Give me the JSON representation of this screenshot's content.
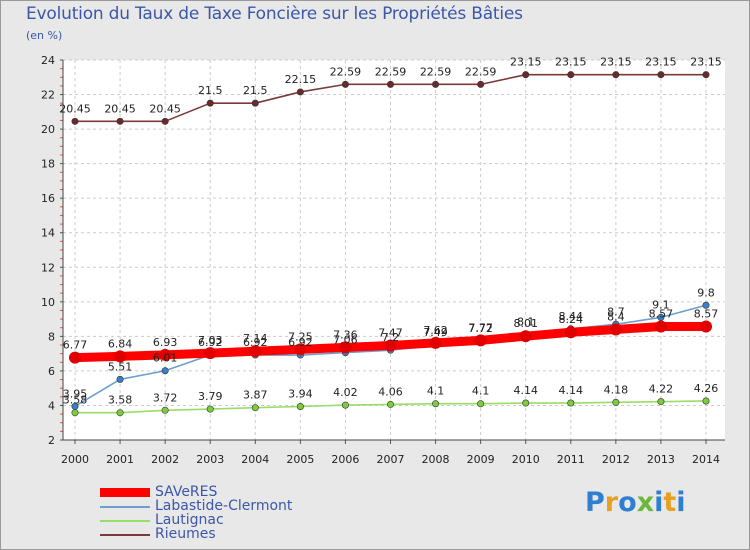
{
  "title": "Evolution du Taux de Taxe Foncière sur les Propriétés Bâties",
  "unit": "(en %)",
  "logo": {
    "letters": [
      "P",
      "r",
      "o",
      "x",
      "i",
      "t",
      "i"
    ],
    "colors": [
      "#2f7fd1",
      "#e8a020",
      "#2f7fd1",
      "#6ab838",
      "#2f7fd1",
      "#e8a020",
      "#2f7fd1"
    ]
  },
  "chart_data": {
    "type": "line",
    "title": "Evolution du Taux de Taxe Foncière sur les Propriétés Bâties",
    "ylabel": "(en %)",
    "xlabel": "",
    "x": [
      "2000",
      "2001",
      "2002",
      "2003",
      "2004",
      "2005",
      "2006",
      "2007",
      "2008",
      "2009",
      "2010",
      "2011",
      "2012",
      "2013",
      "2014"
    ],
    "ylim": [
      2,
      24
    ],
    "yticks": [
      2,
      4,
      6,
      8,
      10,
      12,
      14,
      16,
      18,
      20,
      22,
      24
    ],
    "grid": true,
    "legend_position": "bottom-left",
    "series": [
      {
        "name": "SAVeRES",
        "color": "#ff0000",
        "marker": "#e00000",
        "thick": true,
        "values": [
          6.77,
          6.84,
          6.93,
          7.03,
          7.14,
          7.25,
          7.36,
          7.47,
          7.62,
          7.77,
          8.01,
          8.24,
          8.4,
          8.57,
          8.57
        ],
        "labels": [
          "6.77",
          "6.84",
          "6.93",
          "7.03",
          "7.14",
          "7.25",
          "7.36",
          "7.47",
          "7.62",
          "7.77",
          "8.01",
          "8.24",
          "8.4",
          "8.57",
          "8.57"
        ]
      },
      {
        "name": "Labastide-Clermont",
        "color": "#6a9fd0",
        "marker": "#3a7fc8",
        "thick": false,
        "values": [
          3.95,
          5.51,
          6.01,
          6.92,
          6.92,
          6.92,
          7.06,
          7.2,
          7.49,
          7.72,
          8.1,
          8.44,
          8.7,
          9.1,
          9.8
        ],
        "labels": [
          "3.95",
          "5.51",
          "6.01",
          "6.92",
          "6.92",
          "6.92",
          "7.06",
          "7.2",
          "7.49",
          "7.72",
          "8.1",
          "8.44",
          "8.7",
          "9.1",
          "9.8"
        ]
      },
      {
        "name": "Lautignac",
        "color": "#99dd66",
        "marker": "#7ccc3c",
        "thick": false,
        "values": [
          3.58,
          3.58,
          3.72,
          3.79,
          3.87,
          3.94,
          4.02,
          4.06,
          4.1,
          4.1,
          4.14,
          4.14,
          4.18,
          4.22,
          4.26
        ],
        "labels": [
          "3.58",
          "3.58",
          "3.72",
          "3.79",
          "3.87",
          "3.94",
          "4.02",
          "4.06",
          "4.1",
          "4.1",
          "4.14",
          "4.14",
          "4.18",
          "4.22",
          "4.26"
        ]
      },
      {
        "name": "Rieumes",
        "color": "#7a3a3a",
        "marker": "#6a2a2a",
        "thick": false,
        "values": [
          20.45,
          20.45,
          20.45,
          21.5,
          21.5,
          22.15,
          22.59,
          22.59,
          22.59,
          22.59,
          23.15,
          23.15,
          23.15,
          23.15,
          23.15
        ],
        "labels": [
          "20.45",
          "20.45",
          "20.45",
          "21.5",
          "21.5",
          "22.15",
          "22.59",
          "22.59",
          "22.59",
          "22.59",
          "23.15",
          "23.15",
          "23.15",
          "23.15",
          "23.15"
        ]
      }
    ]
  }
}
